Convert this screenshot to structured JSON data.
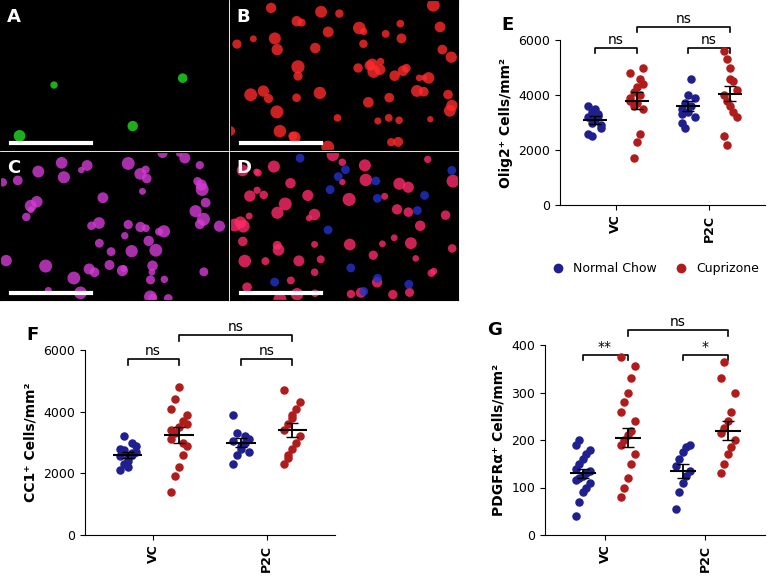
{
  "panels": [
    {
      "label": "A",
      "color": "#22dd22"
    },
    {
      "label": "B",
      "color": "#ff2a2a"
    },
    {
      "label": "C",
      "color": "#d63cd6"
    },
    {
      "label": "D",
      "color": "#ff2a6a"
    }
  ],
  "chart_data": [
    {
      "type": "scatter",
      "title": "E",
      "ylabel": "Olig2⁺ Cells/mm²",
      "categories": [
        "VC",
        "P2C"
      ],
      "ylim": [
        0,
        6000
      ],
      "yticks": [
        0,
        2000,
        4000,
        6000
      ],
      "legend": "below",
      "series": [
        {
          "name": "Normal Chow",
          "color": "#1f1f8f",
          "values": [
            [
              3200,
              3400,
              3500,
              3300,
              2800,
              2600,
              3000,
              3100,
              3250,
              2900,
              3600,
              2500,
              3350
            ],
            [
              3500,
              3700,
              4000,
              4600,
              3200,
              3000,
              2800,
              3400,
              3600,
              3900,
              3300
            ]
          ],
          "mean": [
            3100,
            3600
          ],
          "sem": [
            150,
            180
          ]
        },
        {
          "name": "Cuprizone",
          "color": "#b01c1c",
          "values": [
            [
              3800,
              1700,
              2300,
              2600,
              3500,
              3900,
              4100,
              4300,
              4600,
              5000,
              4800,
              3600,
              3700,
              4000,
              4400
            ],
            [
              5600,
              5300,
              5000,
              4500,
              4200,
              4000,
              3800,
              3600,
              3400,
              3200,
              2500,
              2200,
              4600
            ]
          ],
          "mean": [
            3800,
            4050
          ],
          "sem": [
            300,
            280
          ]
        }
      ],
      "annotations": [
        {
          "label": "ns",
          "between": [
            [
              "VC",
              "Normal Chow"
            ],
            [
              "VC",
              "Cuprizone"
            ]
          ]
        },
        {
          "label": "ns",
          "between": [
            [
              "P2C",
              "Normal Chow"
            ],
            [
              "P2C",
              "Cuprizone"
            ]
          ]
        },
        {
          "label": "ns",
          "between": [
            [
              "VC",
              "Cuprizone"
            ],
            [
              "P2C",
              "Cuprizone"
            ]
          ]
        }
      ]
    },
    {
      "type": "scatter",
      "title": "F",
      "ylabel": "CC1⁺ Cells/mm²",
      "categories": [
        "VC",
        "P2C"
      ],
      "ylim": [
        0,
        6000
      ],
      "yticks": [
        0,
        2000,
        4000,
        6000
      ],
      "series": [
        {
          "name": "Normal Chow",
          "color": "#1f1f8f",
          "values": [
            [
              2100,
              2300,
              2500,
              2600,
              2700,
              2800,
              3200,
              2400,
              2650,
              2900,
              2550,
              2750,
              2200,
              3000
            ],
            [
              2300,
              2600,
              2800,
              3000,
              3100,
              3900,
              3300,
              2900,
              3200,
              2700,
              3050
            ]
          ],
          "mean": [
            2600,
            3000
          ],
          "sem": [
            90,
            140
          ]
        },
        {
          "name": "Cuprizone",
          "color": "#b01c1c",
          "values": [
            [
              1400,
              1900,
              2200,
              2600,
              2900,
              3100,
              3300,
              3500,
              3700,
              3900,
              4100,
              4400,
              4800,
              3000,
              3600,
              3400
            ],
            [
              2300,
              2600,
              2800,
              3000,
              3200,
              3400,
              3600,
              3800,
              4100,
              4300,
              4700,
              2500,
              3900
            ]
          ],
          "mean": [
            3250,
            3400
          ],
          "sem": [
            250,
            230
          ]
        }
      ],
      "annotations": [
        {
          "label": "ns",
          "between": [
            [
              "VC",
              "Normal Chow"
            ],
            [
              "VC",
              "Cuprizone"
            ]
          ]
        },
        {
          "label": "ns",
          "between": [
            [
              "P2C",
              "Normal Chow"
            ],
            [
              "P2C",
              "Cuprizone"
            ]
          ]
        },
        {
          "label": "ns",
          "between": [
            [
              "VC",
              "Cuprizone"
            ],
            [
              "P2C",
              "Cuprizone"
            ]
          ]
        }
      ]
    },
    {
      "type": "scatter",
      "title": "G",
      "ylabel": "PDGFRα⁺ Cells/mm²",
      "categories": [
        "VC",
        "P2C"
      ],
      "ylim": [
        0,
        400
      ],
      "yticks": [
        0,
        100,
        200,
        300,
        400
      ],
      "series": [
        {
          "name": "Normal Chow",
          "color": "#1f1f8f",
          "values": [
            [
              40,
              70,
              90,
              100,
              110,
              115,
              120,
              125,
              130,
              135,
              140,
              150,
              160,
              170,
              180,
              190,
              200
            ],
            [
              55,
              90,
              110,
              125,
              135,
              145,
              160,
              175,
              185,
              190
            ]
          ],
          "mean": [
            130,
            135
          ],
          "sem": [
            10,
            14
          ]
        },
        {
          "name": "Cuprizone",
          "color": "#b01c1c",
          "values": [
            [
              80,
              100,
              120,
              150,
              170,
              190,
              200,
              210,
              220,
              240,
              260,
              280,
              300,
              330,
              355,
              375
            ],
            [
              130,
              150,
              170,
              185,
              200,
              215,
              225,
              240,
              260,
              300,
              330,
              365
            ]
          ],
          "mean": [
            205,
            220
          ],
          "sem": [
            20,
            20
          ]
        }
      ],
      "annotations": [
        {
          "label": "**",
          "between": [
            [
              "VC",
              "Normal Chow"
            ],
            [
              "VC",
              "Cuprizone"
            ]
          ]
        },
        {
          "label": "*",
          "between": [
            [
              "P2C",
              "Normal Chow"
            ],
            [
              "P2C",
              "Cuprizone"
            ]
          ]
        },
        {
          "label": "ns",
          "between": [
            [
              "VC",
              "Cuprizone"
            ],
            [
              "P2C",
              "Cuprizone"
            ]
          ]
        }
      ]
    }
  ]
}
